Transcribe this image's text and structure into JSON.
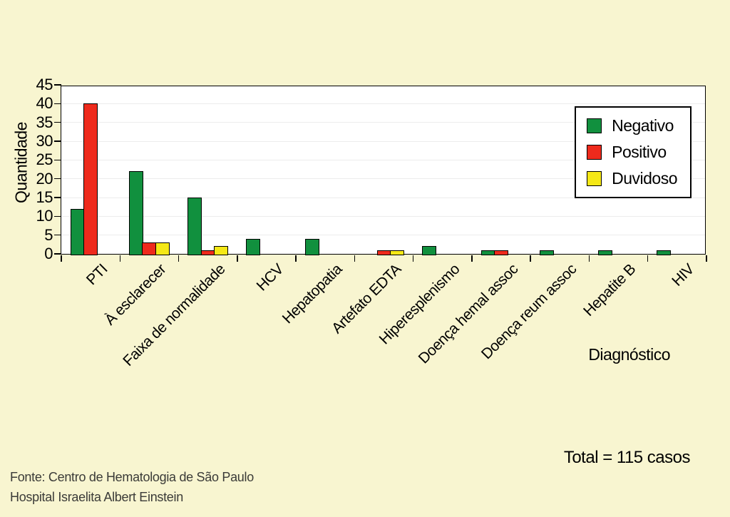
{
  "page": {
    "background": "#f8f5d0"
  },
  "chart_data": {
    "type": "bar",
    "title": "",
    "xlabel": "Diagnóstico",
    "ylabel": "Quantidade",
    "ylim": [
      0,
      45
    ],
    "yticks": [
      0,
      5,
      10,
      15,
      20,
      25,
      30,
      35,
      40,
      45
    ],
    "grid": "faint horizontal gridlines",
    "legend_position": "top-right inside plot area",
    "plot_background": "#ffffff",
    "categories": [
      "PTI",
      "À esclarecer",
      "Faixa de normalidade",
      "HCV",
      "Hepatopatia",
      "Artefato EDTA",
      "Hiperesplenismo",
      "Doença hemal assoc",
      "Doença reum assoc",
      "Hepatite B",
      "HIV"
    ],
    "series": [
      {
        "name": "Negativo",
        "color": "#11903e",
        "values": [
          12,
          22,
          15,
          4,
          4,
          0,
          2,
          1,
          1,
          1,
          1
        ]
      },
      {
        "name": "Positivo",
        "color": "#ee2a1c",
        "values": [
          40,
          3,
          1,
          0,
          0,
          1,
          0,
          1,
          0,
          0,
          0
        ]
      },
      {
        "name": "Duvidoso",
        "color": "#f5e816",
        "values": [
          0,
          3,
          2,
          0,
          0,
          1,
          0,
          0,
          0,
          0,
          0
        ]
      }
    ]
  },
  "annotations": {
    "total": "Total = 115 casos",
    "source_line1": "Fonte: Centro de Hematologia de São Paulo",
    "source_line2": "Hospital Israelita Albert Einstein"
  }
}
